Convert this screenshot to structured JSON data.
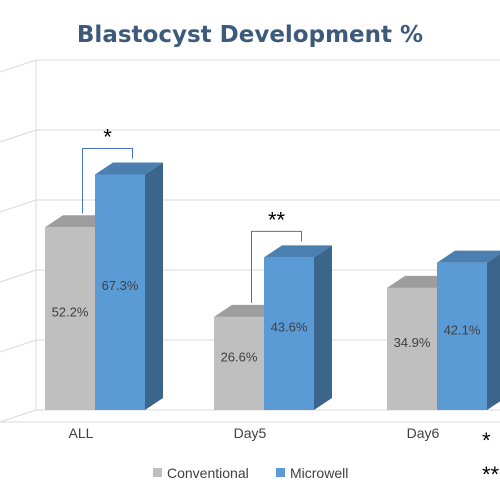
{
  "chart_data": {
    "type": "bar",
    "title": "Blastocyst Development %",
    "categories": [
      "ALL",
      "Day5",
      "Day6"
    ],
    "series": [
      {
        "name": "Conventional",
        "values": [
          52.2,
          26.6,
          34.9
        ],
        "labels": [
          "52.2%",
          "26.6%",
          "34.9%"
        ],
        "color": "#bfbfbf"
      },
      {
        "name": "Microwell",
        "values": [
          67.3,
          43.6,
          42.1
        ],
        "labels": [
          "67.3%",
          "43.6%",
          "42.1%"
        ],
        "color": "#5b9bd5"
      }
    ],
    "ylim": [
      0,
      100
    ],
    "grid": true,
    "legend_position": "bottom",
    "significance": [
      {
        "category": "ALL",
        "marker": "*"
      },
      {
        "category": "Day5",
        "marker": "**"
      }
    ],
    "footnote_markers": [
      "*",
      "**"
    ]
  }
}
